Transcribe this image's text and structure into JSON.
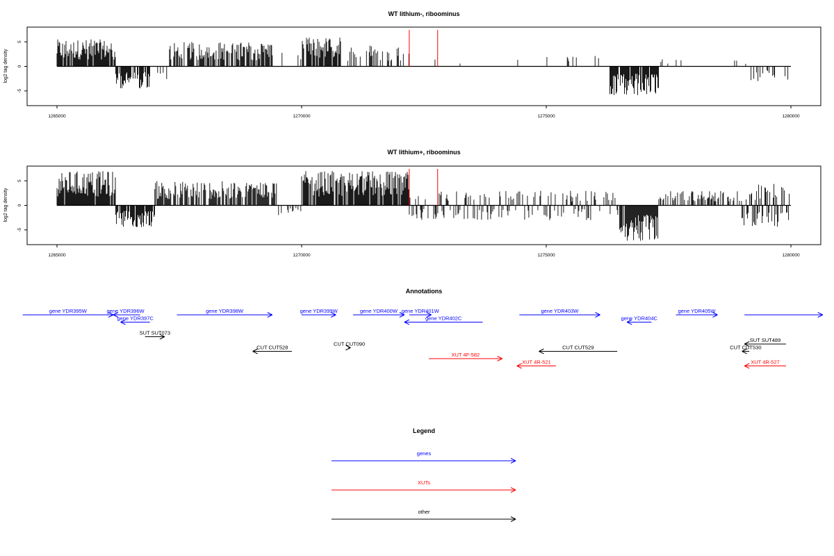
{
  "chart_data": [
    {
      "type": "bar",
      "title": "WT lithium-, riboominus",
      "ylabel": "log2 tag density",
      "xlim": [
        1265000,
        1280000
      ],
      "ylim": [
        -8,
        8
      ],
      "xticks": [
        "1265000",
        "1270000",
        "1275000",
        "1280000"
      ],
      "yticks": [
        "5",
        "0",
        "-5"
      ],
      "markers": [
        1272200,
        1272780
      ],
      "segments": [
        {
          "start": 1265000,
          "end": 1266200,
          "sign": 1,
          "max": 5.5,
          "density": 0.85
        },
        {
          "start": 1266200,
          "end": 1266900,
          "sign": -1,
          "max": 4.5,
          "density": 0.8
        },
        {
          "start": 1266900,
          "end": 1267300,
          "sign": -1,
          "max": 3,
          "density": 0.15
        },
        {
          "start": 1267300,
          "end": 1269400,
          "sign": 1,
          "max": 5,
          "density": 0.7
        },
        {
          "start": 1269400,
          "end": 1270000,
          "sign": 1,
          "max": 3,
          "density": 0.12
        },
        {
          "start": 1270000,
          "end": 1270800,
          "sign": 1,
          "max": 6,
          "density": 0.9
        },
        {
          "start": 1270800,
          "end": 1272200,
          "sign": 1,
          "max": 4.5,
          "density": 0.2
        },
        {
          "start": 1272200,
          "end": 1275400,
          "sign": 1,
          "max": 2,
          "density": 0.02
        },
        {
          "start": 1275400,
          "end": 1276300,
          "sign": 1,
          "max": 3,
          "density": 0.1
        },
        {
          "start": 1276300,
          "end": 1277300,
          "sign": -1,
          "max": 6,
          "density": 0.9
        },
        {
          "start": 1277300,
          "end": 1279100,
          "sign": 1,
          "max": 1.5,
          "density": 0.05
        },
        {
          "start": 1279100,
          "end": 1280000,
          "sign": -1,
          "max": 3,
          "density": 0.35
        }
      ]
    },
    {
      "type": "bar",
      "title": "WT lithium+, riboominus",
      "ylabel": "log2 tag density",
      "xlim": [
        1265000,
        1280000
      ],
      "ylim": [
        -8,
        8
      ],
      "xticks": [
        "1265000",
        "1270000",
        "1275000",
        "1280000"
      ],
      "yticks": [
        "5",
        "0",
        "-5"
      ],
      "markers": [
        1272200,
        1272780
      ],
      "segments": [
        {
          "start": 1265000,
          "end": 1266200,
          "sign": 1,
          "max": 7,
          "density": 0.9
        },
        {
          "start": 1266200,
          "end": 1267000,
          "sign": -1,
          "max": 4.5,
          "density": 0.85
        },
        {
          "start": 1267000,
          "end": 1269500,
          "sign": 1,
          "max": 5,
          "density": 0.75
        },
        {
          "start": 1269500,
          "end": 1270000,
          "sign": -1,
          "max": 2,
          "density": 0.3
        },
        {
          "start": 1270000,
          "end": 1272200,
          "sign": 1,
          "max": 7,
          "density": 0.9
        },
        {
          "start": 1272200,
          "end": 1276500,
          "sign": 0,
          "max": 3,
          "density": 0.5
        },
        {
          "start": 1276500,
          "end": 1277300,
          "sign": -1,
          "max": 7.5,
          "density": 0.95
        },
        {
          "start": 1277300,
          "end": 1279000,
          "sign": 1,
          "max": 3,
          "density": 0.5
        },
        {
          "start": 1279000,
          "end": 1280000,
          "sign": 0,
          "max": 4.5,
          "density": 0.7
        }
      ]
    }
  ],
  "annotations": {
    "title": "Annotations",
    "items": [
      {
        "label": "gene YDR395W",
        "kind": "gene",
        "start": 1264300,
        "end": 1266150,
        "dir": "right",
        "row": 0
      },
      {
        "label": "gene YDR396W",
        "kind": "gene",
        "start": 1266150,
        "end": 1266700,
        "dir": "left",
        "row": 0,
        "labelPos": 1266400
      },
      {
        "label": "gene YDR397C",
        "kind": "gene",
        "start": 1266300,
        "end": 1266900,
        "dir": "left",
        "row": 1
      },
      {
        "label": "gene YDR398W",
        "kind": "gene",
        "start": 1267450,
        "end": 1269400,
        "dir": "right",
        "row": 0
      },
      {
        "label": "gene YDR399W",
        "kind": "gene",
        "start": 1270000,
        "end": 1270700,
        "dir": "right",
        "row": 0
      },
      {
        "label": "gene YDR400W",
        "kind": "gene",
        "start": 1271050,
        "end": 1272100,
        "dir": "right",
        "row": 0
      },
      {
        "label": "gene YDR401W",
        "kind": "gene",
        "start": 1272200,
        "end": 1272650,
        "dir": "right",
        "row": 0
      },
      {
        "label": "gene YDR402C",
        "kind": "gene",
        "start": 1272100,
        "end": 1273700,
        "dir": "left",
        "row": 1
      },
      {
        "label": "gene YDR403W",
        "kind": "gene",
        "start": 1274450,
        "end": 1276100,
        "dir": "right",
        "row": 0
      },
      {
        "label": "gene YDR404C",
        "kind": "gene",
        "start": 1276650,
        "end": 1277150,
        "dir": "left",
        "row": 1
      },
      {
        "label": "gene YDR405W",
        "kind": "gene",
        "start": 1277650,
        "end": 1278500,
        "dir": "right",
        "row": 0
      },
      {
        "label": "",
        "kind": "gene",
        "start": 1279050,
        "end": 1280650,
        "dir": "right",
        "row": 0
      },
      {
        "label": "SUT SUT073",
        "kind": "other",
        "start": 1266800,
        "end": 1267200,
        "dir": "right",
        "row": 3
      },
      {
        "label": "CUT CUT528",
        "kind": "other",
        "start": 1269000,
        "end": 1269800,
        "dir": "left",
        "row": 5
      },
      {
        "label": "CUT CUT090",
        "kind": "other",
        "start": 1270950,
        "end": 1271000,
        "dir": "right",
        "row": 4.5
      },
      {
        "label": "XUT 4F-582",
        "kind": "xut",
        "start": 1272600,
        "end": 1274100,
        "dir": "right",
        "row": 6
      },
      {
        "label": "CUT CUT529",
        "kind": "other",
        "start": 1274850,
        "end": 1276450,
        "dir": "left",
        "row": 5
      },
      {
        "label": "XUT 4R-521",
        "kind": "xut",
        "start": 1274400,
        "end": 1275200,
        "dir": "left",
        "row": 7
      },
      {
        "label": "SUT SUT489",
        "kind": "other",
        "start": 1279050,
        "end": 1279900,
        "dir": "left",
        "row": 4
      },
      {
        "label": "CUT CUT530",
        "kind": "other",
        "start": 1279000,
        "end": 1279150,
        "dir": "left",
        "row": 5
      },
      {
        "label": "XUT 4R-527",
        "kind": "xut",
        "start": 1279050,
        "end": 1279900,
        "dir": "left",
        "row": 7
      }
    ]
  },
  "legend": {
    "title": "Legend",
    "items": [
      {
        "label": "genes",
        "color": "#0000ff"
      },
      {
        "label": "XUTs",
        "color": "#ff0000"
      },
      {
        "label": "other",
        "color": "#000000"
      }
    ]
  },
  "colors": {
    "gene": "#0000ff",
    "xut": "#ff0000",
    "other": "#000000",
    "marker": "#ff0000"
  }
}
